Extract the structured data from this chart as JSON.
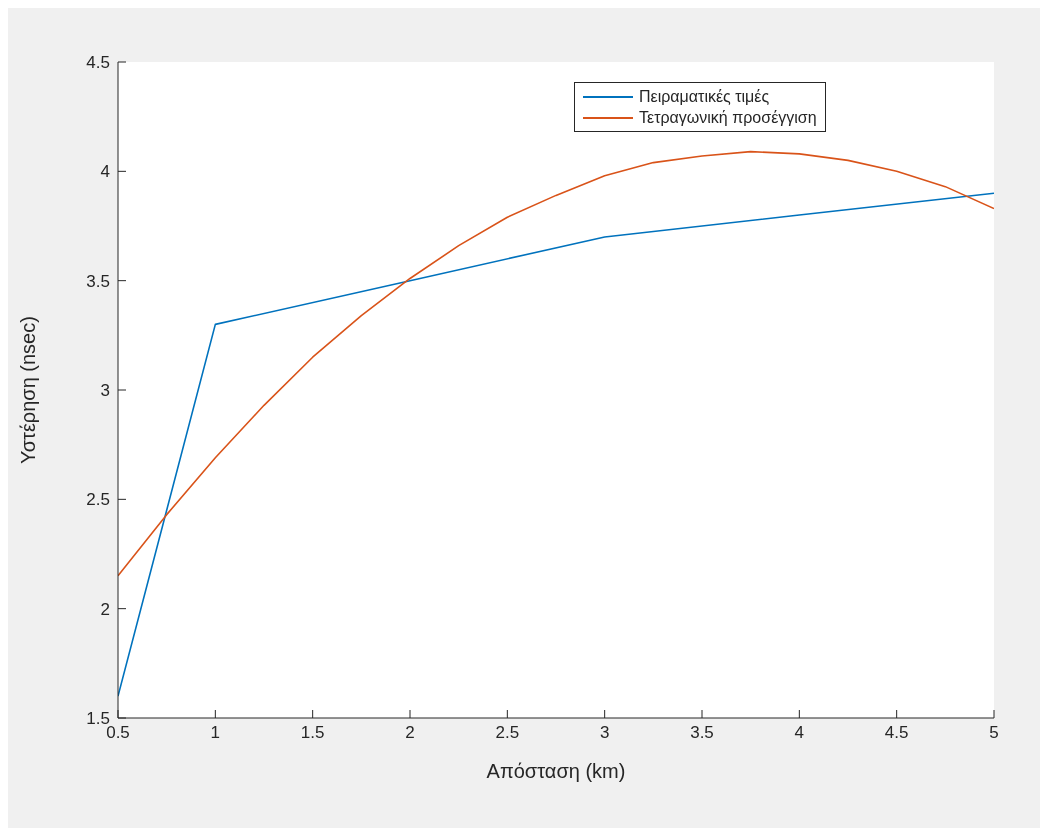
{
  "chart_data": {
    "type": "line",
    "xlabel": "Απόσταση (km)",
    "ylabel": "Υστέρηση (nsec)",
    "xlim": [
      0.5,
      5
    ],
    "xticks": [
      0.5,
      1,
      1.5,
      2,
      2.5,
      3,
      3.5,
      4,
      4.5,
      5
    ],
    "ylim": [
      1.5,
      4.5
    ],
    "yticks": [
      1.5,
      2,
      2.5,
      3,
      3.5,
      4,
      4.5
    ],
    "grid": false,
    "legend": "top right",
    "marker": "none",
    "line_style": "solid",
    "series": [
      {
        "name": "Πειραματικές τιμές",
        "color": "#0072bd",
        "x": [
          0.5,
          1,
          2,
          3,
          4,
          5
        ],
        "values": [
          1.6,
          3.3,
          3.5,
          3.7,
          3.8,
          3.9
        ]
      },
      {
        "name": "Τετραγωνική προσέγγιση",
        "color": "#d95319",
        "x": [
          0.5,
          0.75,
          1,
          1.25,
          1.5,
          1.75,
          2,
          2.25,
          2.5,
          2.75,
          3,
          3.25,
          3.5,
          3.75,
          4,
          4.25,
          4.5,
          4.75,
          5
        ],
        "values": [
          2.15,
          2.43,
          2.69,
          2.93,
          3.15,
          3.34,
          3.51,
          3.66,
          3.79,
          3.89,
          3.98,
          4.04,
          4.07,
          4.09,
          4.08,
          4.05,
          4.0,
          3.93,
          3.83
        ]
      }
    ]
  }
}
